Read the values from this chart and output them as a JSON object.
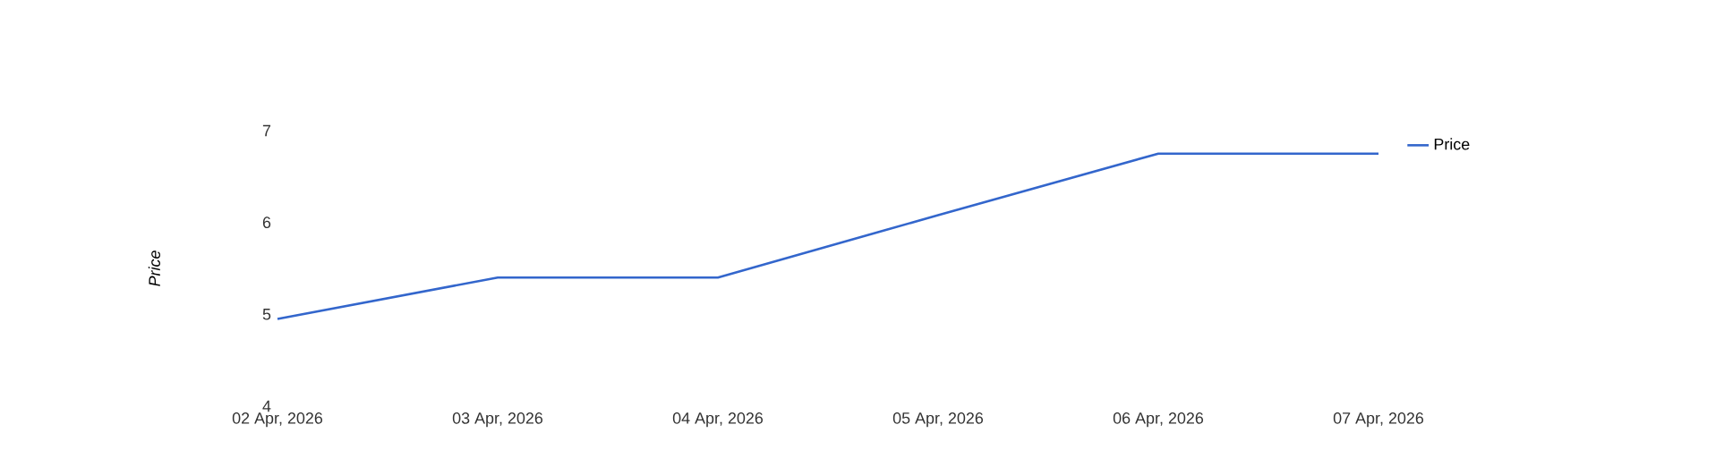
{
  "chart_data": {
    "type": "line",
    "ylabel": "Price",
    "x": [
      "2026-04-02",
      "2026-04-03",
      "2026-04-04",
      "2026-04-05",
      "2026-04-06",
      "2026-04-07"
    ],
    "series": [
      {
        "name": "Price",
        "color": "#3366cc",
        "values": [
          4.95,
          5.4,
          5.4,
          6.08,
          6.75,
          6.75
        ]
      }
    ],
    "xlim": [
      "2026-04-02",
      "2026-04-07"
    ],
    "xticks": [
      {
        "value": "2026-04-02",
        "label": "02 Apr, 2026"
      },
      {
        "value": "2026-04-03",
        "label": "03 Apr, 2026"
      },
      {
        "value": "2026-04-04",
        "label": "04 Apr, 2026"
      },
      {
        "value": "2026-04-05",
        "label": "05 Apr, 2026"
      },
      {
        "value": "2026-04-06",
        "label": "06 Apr, 2026"
      },
      {
        "value": "2026-04-07",
        "label": "07 Apr, 2026"
      }
    ],
    "ylim": [
      4,
      7
    ],
    "yticks": [
      4,
      5,
      6,
      7
    ],
    "grid": false,
    "legend": "top right",
    "marker": "none",
    "line_style": "solid"
  }
}
